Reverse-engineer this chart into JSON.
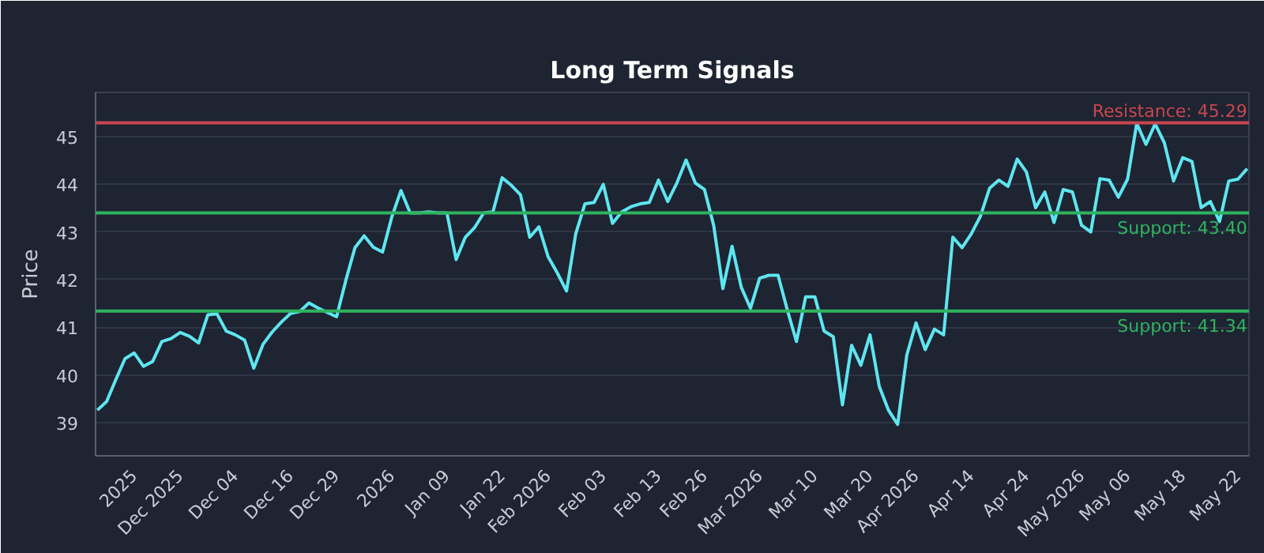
{
  "chart_data": {
    "type": "line",
    "title": "Long Term Signals",
    "ylabel": "Price",
    "categories": [
      null,
      null,
      null,
      null,
      "2025",
      null,
      null,
      null,
      null,
      "Dec 2025",
      null,
      null,
      null,
      null,
      null,
      "Dec 04",
      null,
      null,
      null,
      null,
      null,
      "Dec 16",
      null,
      null,
      null,
      null,
      "Dec 29",
      null,
      null,
      null,
      null,
      null,
      "2026",
      null,
      null,
      null,
      null,
      null,
      "Jan 09",
      null,
      null,
      null,
      null,
      null,
      "Jan 22",
      null,
      null,
      null,
      null,
      "Feb 2026",
      null,
      null,
      null,
      null,
      null,
      "Feb 03",
      null,
      null,
      null,
      null,
      null,
      "Feb 13",
      null,
      null,
      null,
      null,
      "Feb 26",
      null,
      null,
      null,
      null,
      null,
      "Mar 2026",
      null,
      null,
      null,
      null,
      null,
      "Mar 10",
      null,
      null,
      null,
      null,
      null,
      "Mar 20",
      null,
      null,
      null,
      null,
      "Apr 2026",
      null,
      null,
      null,
      null,
      null,
      "Apr 14",
      null,
      null,
      null,
      null,
      null,
      "Apr 24",
      null,
      null,
      null,
      null,
      null,
      "May 2026",
      null,
      null,
      null,
      null,
      "May 06",
      null,
      null,
      null,
      null,
      null,
      "May 18",
      null,
      null,
      null,
      null,
      null,
      "May 22",
      null
    ],
    "series": [
      {
        "color": "#5ee6f0",
        "values": [
          39.26,
          39.44,
          39.9,
          40.34,
          40.46,
          40.18,
          40.28,
          40.7,
          40.76,
          40.89,
          40.81,
          40.67,
          41.26,
          41.28,
          40.92,
          40.84,
          40.73,
          40.14,
          40.64,
          40.9,
          41.11,
          41.29,
          41.33,
          41.51,
          41.4,
          41.31,
          41.22,
          41.98,
          42.67,
          42.92,
          42.68,
          42.58,
          43.31,
          43.87,
          43.4,
          43.4,
          43.42,
          43.4,
          43.4,
          42.42,
          42.89,
          43.09,
          43.4,
          43.42,
          44.14,
          43.98,
          43.78,
          42.89,
          43.11,
          42.48,
          42.14,
          41.76,
          42.96,
          43.59,
          43.62,
          44.0,
          43.18,
          43.42,
          43.53,
          43.59,
          43.62,
          44.09,
          43.64,
          44.03,
          44.51,
          44.03,
          43.89,
          43.14,
          41.81,
          42.7,
          41.84,
          41.4,
          42.03,
          42.09,
          42.09,
          41.37,
          40.7,
          41.64,
          41.64,
          40.92,
          40.8,
          39.37,
          40.62,
          40.2,
          40.84,
          39.76,
          39.26,
          38.96,
          40.42,
          41.09,
          40.53,
          40.96,
          40.84,
          42.89,
          42.67,
          42.96,
          43.33,
          43.92,
          44.09,
          43.96,
          44.53,
          44.26,
          43.51,
          43.84,
          43.2,
          43.89,
          43.84,
          43.14,
          43.0,
          44.12,
          44.09,
          43.73,
          44.11,
          45.28,
          44.84,
          45.27,
          44.87,
          44.07,
          44.56,
          44.48,
          43.51,
          43.64,
          43.22,
          44.07,
          44.11,
          44.33
        ]
      }
    ],
    "ylim": [
      38.3,
      45.93
    ],
    "yticks": [
      39,
      40,
      41,
      42,
      43,
      44,
      45
    ],
    "grid": "y",
    "ref_lines": [
      {
        "axis": "y",
        "value": 45.29,
        "label": "Resistance: 45.29",
        "color": "#c8464f"
      },
      {
        "axis": "y",
        "value": 43.4,
        "label": "Support: 43.40",
        "color": "#2fb35f"
      },
      {
        "axis": "y",
        "value": 41.34,
        "label": "Support: 41.34",
        "color": "#2fb35f"
      }
    ]
  }
}
